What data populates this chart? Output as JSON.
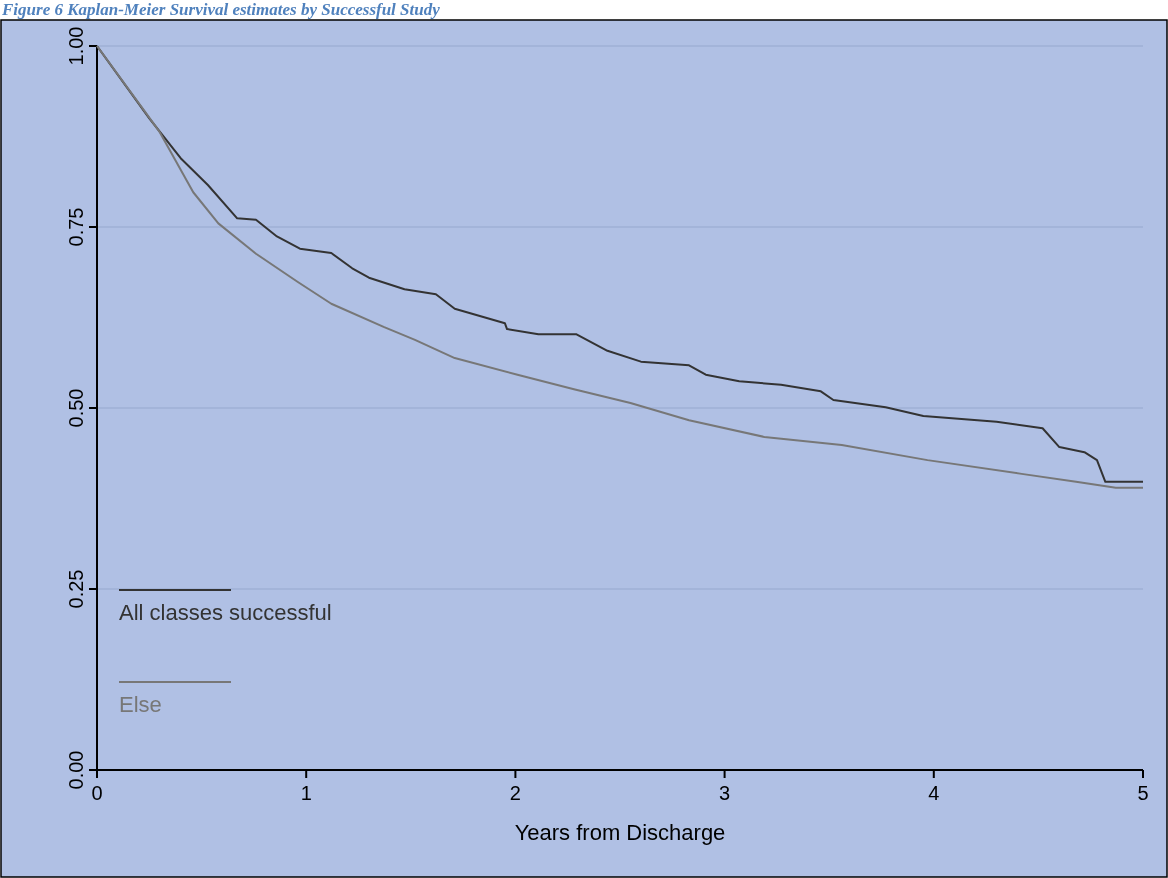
{
  "chart_data": {
    "type": "line",
    "title": "Figure 6 Kaplan-Meier Survival estimates by Successful Study",
    "xlabel": "Years from Discharge",
    "xlim": [
      0,
      5
    ],
    "xticks": [
      0,
      1,
      2,
      3,
      4,
      5
    ],
    "ylim": [
      0,
      1
    ],
    "yticks": [
      {
        "value": 0,
        "label": "0.00"
      },
      {
        "value": 0.25,
        "label": "0.25"
      },
      {
        "value": 0.5,
        "label": "0.50"
      },
      {
        "value": 0.75,
        "label": "0.75"
      },
      {
        "value": 1,
        "label": "1.00"
      }
    ],
    "grid": "y",
    "legend": "bottom left",
    "marker": "none",
    "line_style": "solid",
    "series": [
      {
        "name": "All classes successful",
        "color": "#333333",
        "x": [
          0,
          0.25,
          0.4,
          0.53,
          0.67,
          0.76,
          0.86,
          0.97,
          1.12,
          1.22,
          1.3,
          1.47,
          1.62,
          1.71,
          1.95,
          1.96,
          2.11,
          2.29,
          2.44,
          2.6,
          2.83,
          2.91,
          3.07,
          3.27,
          3.46,
          3.52,
          3.77,
          3.95,
          4.3,
          4.52,
          4.6,
          4.72,
          4.78,
          4.82,
          5
        ],
        "values": [
          1,
          0.9,
          0.845,
          0.808,
          0.762,
          0.76,
          0.737,
          0.72,
          0.714,
          0.693,
          0.68,
          0.664,
          0.657,
          0.637,
          0.617,
          0.609,
          0.602,
          0.602,
          0.579,
          0.564,
          0.559,
          0.546,
          0.537,
          0.532,
          0.523,
          0.511,
          0.501,
          0.489,
          0.481,
          0.472,
          0.446,
          0.439,
          0.428,
          0.398,
          0.398
        ]
      },
      {
        "name": "Else",
        "color": "#777777",
        "x": [
          0,
          0.23,
          0.3,
          0.46,
          0.58,
          0.76,
          0.96,
          1.12,
          1.37,
          1.52,
          1.71,
          2.01,
          2.28,
          2.55,
          2.83,
          3.19,
          3.56,
          3.97,
          4.42,
          4.68,
          4.87,
          5
        ],
        "values": [
          1,
          0.909,
          0.881,
          0.798,
          0.755,
          0.713,
          0.674,
          0.644,
          0.612,
          0.594,
          0.569,
          0.546,
          0.526,
          0.507,
          0.483,
          0.46,
          0.449,
          0.428,
          0.409,
          0.398,
          0.39,
          0.39
        ]
      }
    ]
  }
}
